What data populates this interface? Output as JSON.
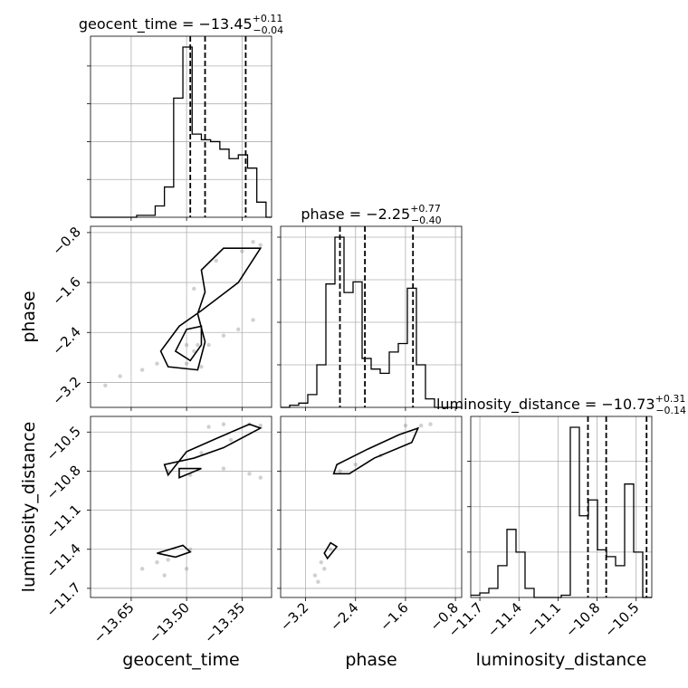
{
  "chart_data": {
    "type": "corner",
    "parameters": [
      "geocent_time",
      "phase",
      "luminosity_distance"
    ],
    "ranges": {
      "geocent_time": [
        -13.76,
        -13.27
      ],
      "phase": [
        -3.6,
        -0.7
      ],
      "luminosity_distance": [
        -11.77,
        -10.38
      ]
    },
    "ticks": {
      "geocent_time": [
        -13.65,
        -13.5,
        -13.35
      ],
      "phase": [
        -3.2,
        -2.4,
        -1.6,
        -0.8
      ],
      "luminosity_distance": [
        -11.7,
        -11.4,
        -11.1,
        -10.8,
        -10.5
      ]
    },
    "tick_labels": {
      "geocent_time": [
        "−13.65",
        "−13.50",
        "−13.35"
      ],
      "phase": [
        "−3.2",
        "−2.4",
        "−1.6",
        "−0.8"
      ],
      "luminosity_distance": [
        "−11.7",
        "−11.4",
        "−11.1",
        "−10.8",
        "−10.5"
      ]
    },
    "axis_labels": {
      "geocent_time": "geocent_time",
      "phase": "phase",
      "luminosity_distance": "luminosity_distance"
    },
    "titles": {
      "geocent_time": {
        "name": "geocent_time",
        "median": "−13.45",
        "plus": "+0.11",
        "minus": "−0.04"
      },
      "phase": {
        "name": "phase",
        "median": "−2.25",
        "plus": "+0.77",
        "minus": "−0.40"
      },
      "luminosity_distance": {
        "name": "luminosity_distance",
        "median": "−10.73",
        "plus": "+0.31",
        "minus": "−0.14"
      }
    },
    "quantiles": {
      "geocent_time": [
        -13.49,
        -13.45,
        -13.34
      ],
      "phase": [
        -2.65,
        -2.25,
        -1.48
      ],
      "luminosity_distance": [
        -10.87,
        -10.73,
        -10.42
      ]
    },
    "histograms": {
      "geocent_time": {
        "edges": [
          -13.76,
          -13.735,
          -13.71,
          -13.685,
          -13.66,
          -13.635,
          -13.61,
          -13.585,
          -13.56,
          -13.535,
          -13.51,
          -13.485,
          -13.46,
          -13.435,
          -13.41,
          -13.385,
          -13.36,
          -13.335,
          -13.31,
          -13.285,
          -13.27
        ],
        "counts": [
          0,
          0,
          0,
          0,
          0,
          1,
          1,
          6,
          16,
          63,
          90,
          44,
          41,
          40,
          36,
          31,
          33,
          26,
          8,
          0
        ]
      },
      "phase": {
        "edges": [
          -3.6,
          -3.455,
          -3.31,
          -3.165,
          -3.02,
          -2.875,
          -2.73,
          -2.585,
          -2.44,
          -2.295,
          -2.15,
          -2.005,
          -1.86,
          -1.715,
          -1.57,
          -1.425,
          -1.28,
          -1.135,
          -0.99,
          -0.845,
          -0.7
        ],
        "counts": [
          0,
          1,
          2,
          6,
          20,
          58,
          80,
          54,
          59,
          23,
          18,
          16,
          26,
          30,
          56,
          20,
          4,
          0,
          0,
          0
        ]
      },
      "luminosity_distance": {
        "edges": [
          -11.77,
          -11.7005,
          -11.631,
          -11.5615,
          -11.492,
          -11.4225,
          -11.353,
          -11.2835,
          -11.214,
          -11.1445,
          -11.075,
          -11.0055,
          -10.936,
          -10.8665,
          -10.797,
          -10.7275,
          -10.658,
          -10.5885,
          -10.519,
          -10.4495,
          -10.38
        ],
        "counts": [
          1,
          2,
          4,
          14,
          30,
          20,
          4,
          0,
          0,
          0,
          1,
          75,
          36,
          43,
          21,
          18,
          14,
          50,
          20,
          0
        ]
      }
    },
    "contours": {
      "phase_vs_geocent_time": [
        [
          [
            -13.47,
            -3.0
          ],
          [
            -13.55,
            -2.95
          ],
          [
            -13.57,
            -2.7
          ],
          [
            -13.52,
            -2.3
          ],
          [
            -13.46,
            -2.05
          ],
          [
            -13.36,
            -1.6
          ],
          [
            -13.3,
            -1.05
          ],
          [
            -13.4,
            -1.05
          ],
          [
            -13.46,
            -1.4
          ],
          [
            -13.45,
            -1.75
          ],
          [
            -13.47,
            -2.1
          ],
          [
            -13.45,
            -2.55
          ],
          [
            -13.47,
            -3.0
          ]
        ],
        [
          [
            -13.49,
            -2.85
          ],
          [
            -13.53,
            -2.7
          ],
          [
            -13.5,
            -2.35
          ],
          [
            -13.46,
            -2.3
          ],
          [
            -13.46,
            -2.6
          ],
          [
            -13.49,
            -2.85
          ]
        ]
      ],
      "luminosity_distance_vs_geocent_time": [
        [
          [
            -13.55,
            -10.83
          ],
          [
            -13.56,
            -10.75
          ],
          [
            -13.48,
            -10.7
          ],
          [
            -13.4,
            -10.62
          ],
          [
            -13.3,
            -10.47
          ],
          [
            -13.33,
            -10.44
          ],
          [
            -13.42,
            -10.55
          ],
          [
            -13.5,
            -10.65
          ],
          [
            -13.55,
            -10.83
          ]
        ],
        [
          [
            -13.52,
            -10.85
          ],
          [
            -13.52,
            -10.78
          ],
          [
            -13.46,
            -10.78
          ],
          [
            -13.52,
            -10.85
          ]
        ],
        [
          [
            -13.58,
            -11.43
          ],
          [
            -13.51,
            -11.37
          ],
          [
            -13.49,
            -11.42
          ],
          [
            -13.53,
            -11.46
          ],
          [
            -13.58,
            -11.43
          ]
        ]
      ],
      "luminosity_distance_vs_phase": [
        [
          [
            -2.75,
            -10.82
          ],
          [
            -2.7,
            -10.75
          ],
          [
            -2.2,
            -10.63
          ],
          [
            -1.7,
            -10.52
          ],
          [
            -1.4,
            -10.47
          ],
          [
            -1.5,
            -10.58
          ],
          [
            -2.1,
            -10.7
          ],
          [
            -2.5,
            -10.82
          ],
          [
            -2.75,
            -10.82
          ]
        ],
        [
          [
            -2.9,
            -11.43
          ],
          [
            -2.8,
            -11.35
          ],
          [
            -2.7,
            -11.38
          ],
          [
            -2.85,
            -11.47
          ],
          [
            -2.9,
            -11.43
          ]
        ]
      ]
    },
    "samples": {
      "phase_vs_geocent_time": [
        [
          -13.72,
          -3.25
        ],
        [
          -13.68,
          -3.1
        ],
        [
          -13.62,
          -3.0
        ],
        [
          -13.58,
          -2.9
        ],
        [
          -13.5,
          -2.6
        ],
        [
          -13.48,
          -2.7
        ],
        [
          -13.47,
          -2.6
        ],
        [
          -13.44,
          -2.6
        ],
        [
          -13.4,
          -2.45
        ],
        [
          -13.36,
          -2.35
        ],
        [
          -13.32,
          -2.2
        ],
        [
          -13.48,
          -1.7
        ],
        [
          -13.42,
          -1.25
        ],
        [
          -13.35,
          -1.1
        ],
        [
          -13.32,
          -0.95
        ],
        [
          -13.3,
          -1.0
        ],
        [
          -13.5,
          -2.9
        ],
        [
          -13.46,
          -2.95
        ]
      ],
      "luminosity_distance_vs_geocent_time": [
        [
          -13.44,
          -10.46
        ],
        [
          -13.4,
          -10.44
        ],
        [
          -13.33,
          -10.44
        ],
        [
          -13.3,
          -10.45
        ],
        [
          -13.38,
          -10.56
        ],
        [
          -13.46,
          -10.66
        ],
        [
          -13.4,
          -10.78
        ],
        [
          -13.33,
          -10.82
        ],
        [
          -13.3,
          -10.85
        ],
        [
          -13.55,
          -10.8
        ],
        [
          -13.49,
          -10.83
        ],
        [
          -13.62,
          -11.55
        ],
        [
          -13.58,
          -11.5
        ],
        [
          -13.55,
          -11.48
        ],
        [
          -13.49,
          -11.4
        ],
        [
          -13.5,
          -11.55
        ],
        [
          -13.56,
          -11.6
        ]
      ],
      "luminosity_distance_vs_phase": [
        [
          -1.6,
          -10.45
        ],
        [
          -1.35,
          -10.45
        ],
        [
          -1.2,
          -10.44
        ],
        [
          -2.0,
          -10.68
        ],
        [
          -2.4,
          -10.75
        ],
        [
          -2.65,
          -10.8
        ],
        [
          -2.9,
          -11.55
        ],
        [
          -3.05,
          -11.6
        ],
        [
          -2.95,
          -11.5
        ],
        [
          -2.8,
          -11.4
        ],
        [
          -3.0,
          -11.65
        ]
      ]
    }
  }
}
